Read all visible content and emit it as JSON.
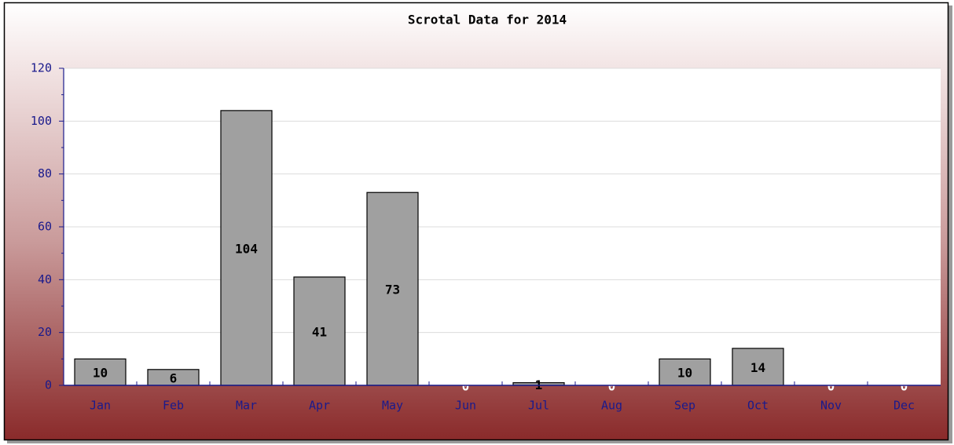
{
  "chart_data": {
    "type": "bar",
    "title": "Scrotal Data for 2014",
    "categories": [
      "Jan",
      "Feb",
      "Mar",
      "Apr",
      "May",
      "Jun",
      "Jul",
      "Aug",
      "Sep",
      "Oct",
      "Nov",
      "Dec"
    ],
    "values": [
      10,
      6,
      104,
      41,
      73,
      0,
      1,
      0,
      10,
      14,
      0,
      0
    ],
    "color": "#a0a0a0",
    "ylim": [
      0,
      120
    ],
    "yticks": [
      0,
      20,
      40,
      60,
      80,
      100,
      120
    ],
    "grid": true
  }
}
